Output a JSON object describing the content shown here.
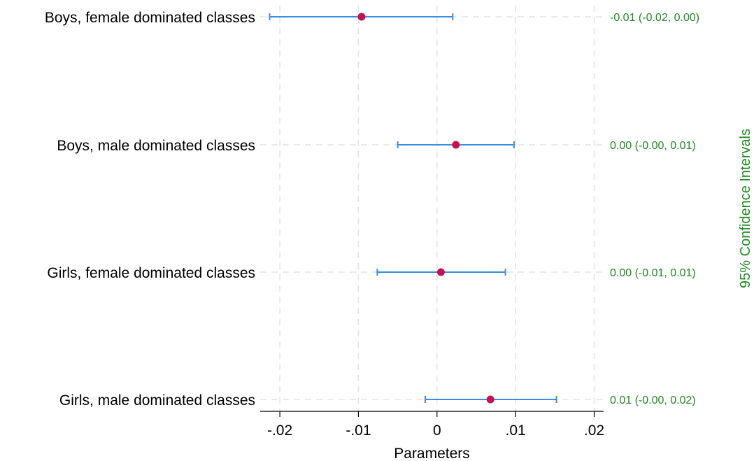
{
  "chart_data": {
    "type": "scatter",
    "subtype": "coefficient-plot",
    "title": "",
    "xlabel": "Parameters",
    "ylabel_right": "95% Confidence Intervals",
    "xlim": [
      -0.0225,
      0.0212
    ],
    "x_ticks": [
      {
        "value": -0.02,
        "label": "-.02"
      },
      {
        "value": -0.01,
        "label": "-.01"
      },
      {
        "value": 0,
        "label": "0"
      },
      {
        "value": 0.01,
        "label": ".01"
      },
      {
        "value": 0.02,
        "label": ".02"
      }
    ],
    "grid": true,
    "marker_color": "#c8104e",
    "ci_color": "#3a8de0",
    "annotation_color": "#1f8a1f",
    "rows": [
      {
        "label": "Boys, female dominated classes",
        "estimate": -0.0096,
        "ci_low": -0.0213,
        "ci_high": 0.002,
        "ci_text": "-0.01 (-0.02, 0.00)"
      },
      {
        "label": "Boys, male dominated classes",
        "estimate": 0.0024,
        "ci_low": -0.005,
        "ci_high": 0.0098,
        "ci_text": "0.00 (-0.00, 0.01)"
      },
      {
        "label": "Girls, female dominated classes",
        "estimate": 0.0005,
        "ci_low": -0.0076,
        "ci_high": 0.0087,
        "ci_text": "0.00 (-0.01, 0.01)"
      },
      {
        "label": "Girls, male dominated classes",
        "estimate": 0.0068,
        "ci_low": -0.0015,
        "ci_high": 0.0152,
        "ci_text": "0.01 (-0.00, 0.02)"
      }
    ]
  }
}
